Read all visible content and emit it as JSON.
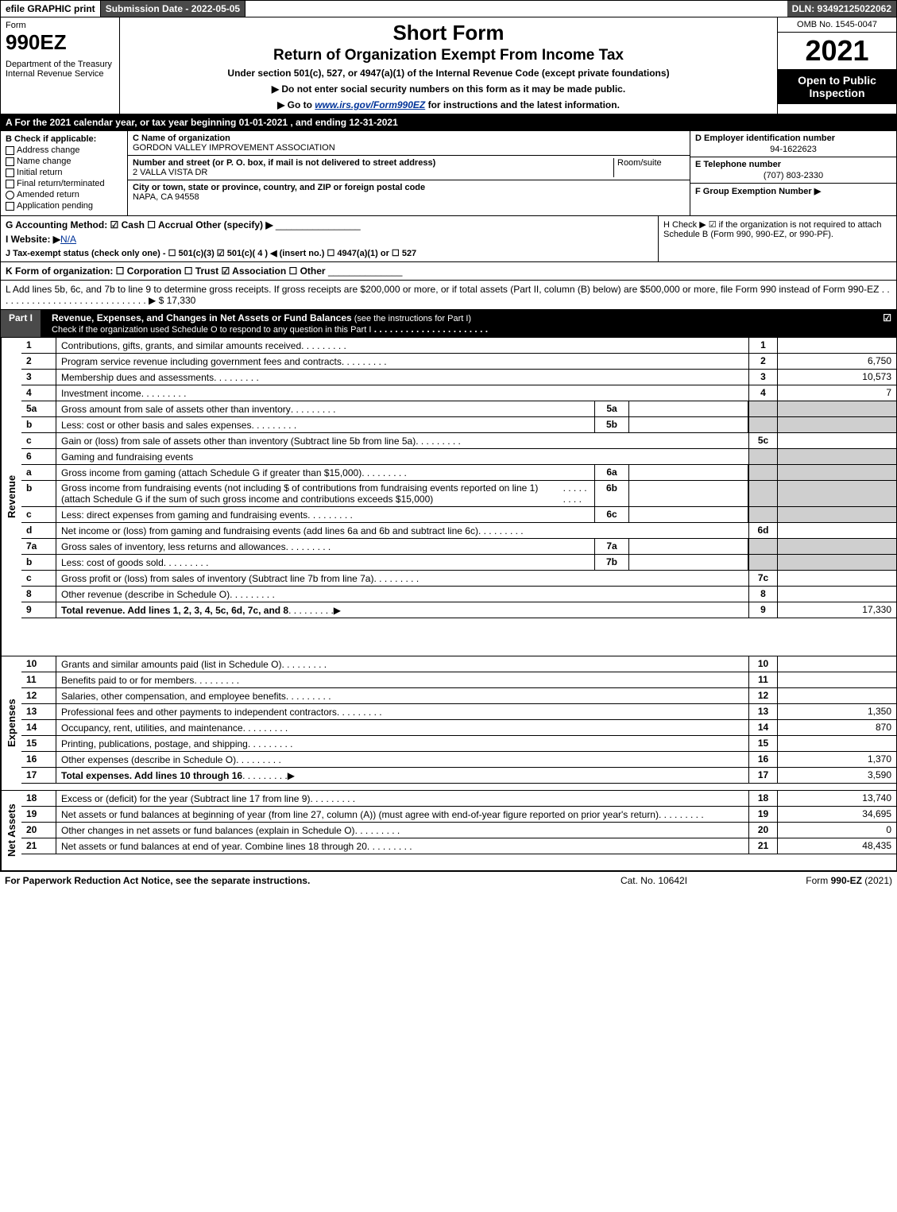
{
  "topbar": {
    "efile": "efile GRAPHIC print",
    "subdate": "Submission Date - 2022-05-05",
    "dln": "DLN: 93492125022062"
  },
  "header": {
    "form_label": "Form",
    "form_code": "990EZ",
    "dept": "Department of the Treasury\nInternal Revenue Service",
    "title": "Short Form",
    "subtitle": "Return of Organization Exempt From Income Tax",
    "under": "Under section 501(c), 527, or 4947(a)(1) of the Internal Revenue Code (except private foundations)",
    "note1": "▶ Do not enter social security numbers on this form as it may be made public.",
    "note2_pre": "▶ Go to ",
    "note2_link": "www.irs.gov/Form990EZ",
    "note2_post": " for instructions and the latest information.",
    "omb": "OMB No. 1545-0047",
    "year": "2021",
    "open": "Open to Public Inspection"
  },
  "line_a": "A  For the 2021 calendar year, or tax year beginning 01-01-2021 , and ending 12-31-2021",
  "section_b": {
    "head": "B  Check if applicable:",
    "opts": [
      "Address change",
      "Name change",
      "Initial return",
      "Final return/terminated",
      "Amended return",
      "Application pending"
    ]
  },
  "section_c": {
    "name_lbl": "C Name of organization",
    "name_val": "GORDON VALLEY IMPROVEMENT ASSOCIATION",
    "addr_lbl": "Number and street (or P. O. box, if mail is not delivered to street address)",
    "addr_val": "2 VALLA VISTA DR",
    "room_lbl": "Room/suite",
    "city_lbl": "City or town, state or province, country, and ZIP or foreign postal code",
    "city_val": "NAPA, CA  94558"
  },
  "section_def": {
    "d_lbl": "D Employer identification number",
    "d_val": "94-1622623",
    "e_lbl": "E Telephone number",
    "e_val": "(707) 803-2330",
    "f_lbl": "F Group Exemption Number  ▶"
  },
  "section_g": {
    "g": "G Accounting Method:  ☑ Cash  ☐ Accrual  Other (specify) ▶",
    "i_pre": "I Website: ▶",
    "i_val": "N/A",
    "j": "J Tax-exempt status (check only one) - ☐ 501(c)(3) ☑ 501(c)( 4 ) ◀ (insert no.) ☐ 4947(a)(1) or ☐ 527",
    "h": "H  Check ▶ ☑ if the organization is not required to attach Schedule B (Form 990, 990-EZ, or 990-PF)."
  },
  "line_k": "K Form of organization:  ☐ Corporation  ☐ Trust  ☑ Association  ☐ Other",
  "line_l": "L Add lines 5b, 6c, and 7b to line 9 to determine gross receipts. If gross receipts are $200,000 or more, or if total assets (Part II, column (B) below) are $500,000 or more, file Form 990 instead of Form 990-EZ . . . . . . . . . . . . . . . . . . . . . . . . . . . . . ▶ $ 17,330",
  "part1": {
    "tab": "Part I",
    "title": "Revenue, Expenses, and Changes in Net Assets or Fund Balances",
    "title_note": " (see the instructions for Part I)",
    "subtitle": "Check if the organization used Schedule O to respond to any question in this Part I"
  },
  "sidelabels": {
    "revenue": "Revenue",
    "expenses": "Expenses",
    "netassets": "Net Assets"
  },
  "rows": [
    {
      "n": "1",
      "d": "Contributions, gifts, grants, and similar amounts received",
      "nc": "1",
      "v": ""
    },
    {
      "n": "2",
      "d": "Program service revenue including government fees and contracts",
      "nc": "2",
      "v": "6,750"
    },
    {
      "n": "3",
      "d": "Membership dues and assessments",
      "nc": "3",
      "v": "10,573"
    },
    {
      "n": "4",
      "d": "Investment income",
      "nc": "4",
      "v": "7"
    },
    {
      "n": "5a",
      "d": "Gross amount from sale of assets other than inventory",
      "sub": "5a"
    },
    {
      "n": "b",
      "d": "Less: cost or other basis and sales expenses",
      "sub": "5b"
    },
    {
      "n": "c",
      "d": "Gain or (loss) from sale of assets other than inventory (Subtract line 5b from line 5a)",
      "nc": "5c",
      "v": ""
    },
    {
      "n": "6",
      "d": "Gaming and fundraising events"
    },
    {
      "n": "a",
      "d": "Gross income from gaming (attach Schedule G if greater than $15,000)",
      "sub": "6a"
    },
    {
      "n": "b",
      "d": "Gross income from fundraising events (not including $           of contributions from fundraising events reported on line 1) (attach Schedule G if the sum of such gross income and contributions exceeds $15,000)",
      "sub": "6b"
    },
    {
      "n": "c",
      "d": "Less: direct expenses from gaming and fundraising events",
      "sub": "6c"
    },
    {
      "n": "d",
      "d": "Net income or (loss) from gaming and fundraising events (add lines 6a and 6b and subtract line 6c)",
      "nc": "6d",
      "v": ""
    },
    {
      "n": "7a",
      "d": "Gross sales of inventory, less returns and allowances",
      "sub": "7a"
    },
    {
      "n": "b",
      "d": "Less: cost of goods sold",
      "sub": "7b"
    },
    {
      "n": "c",
      "d": "Gross profit or (loss) from sales of inventory (Subtract line 7b from line 7a)",
      "nc": "7c",
      "v": ""
    },
    {
      "n": "8",
      "d": "Other revenue (describe in Schedule O)",
      "nc": "8",
      "v": ""
    },
    {
      "n": "9",
      "d": "Total revenue. Add lines 1, 2, 3, 4, 5c, 6d, 7c, and 8",
      "nc": "9",
      "v": "17,330",
      "bold": true,
      "arrow": true
    }
  ],
  "rows_exp": [
    {
      "n": "10",
      "d": "Grants and similar amounts paid (list in Schedule O)",
      "nc": "10",
      "v": ""
    },
    {
      "n": "11",
      "d": "Benefits paid to or for members",
      "nc": "11",
      "v": ""
    },
    {
      "n": "12",
      "d": "Salaries, other compensation, and employee benefits",
      "nc": "12",
      "v": ""
    },
    {
      "n": "13",
      "d": "Professional fees and other payments to independent contractors",
      "nc": "13",
      "v": "1,350"
    },
    {
      "n": "14",
      "d": "Occupancy, rent, utilities, and maintenance",
      "nc": "14",
      "v": "870"
    },
    {
      "n": "15",
      "d": "Printing, publications, postage, and shipping",
      "nc": "15",
      "v": ""
    },
    {
      "n": "16",
      "d": "Other expenses (describe in Schedule O)",
      "nc": "16",
      "v": "1,370"
    },
    {
      "n": "17",
      "d": "Total expenses. Add lines 10 through 16",
      "nc": "17",
      "v": "3,590",
      "bold": true,
      "arrow": true
    }
  ],
  "rows_na": [
    {
      "n": "18",
      "d": "Excess or (deficit) for the year (Subtract line 17 from line 9)",
      "nc": "18",
      "v": "13,740"
    },
    {
      "n": "19",
      "d": "Net assets or fund balances at beginning of year (from line 27, column (A)) (must agree with end-of-year figure reported on prior year's return)",
      "nc": "19",
      "v": "34,695"
    },
    {
      "n": "20",
      "d": "Other changes in net assets or fund balances (explain in Schedule O)",
      "nc": "20",
      "v": "0"
    },
    {
      "n": "21",
      "d": "Net assets or fund balances at end of year. Combine lines 18 through 20",
      "nc": "21",
      "v": "48,435"
    }
  ],
  "footer": {
    "left": "For Paperwork Reduction Act Notice, see the separate instructions.",
    "center": "Cat. No. 10642I",
    "right_pre": "Form ",
    "right_form": "990-EZ",
    "right_post": " (2021)"
  },
  "colors": {
    "dark_bg": "#4a4a4a",
    "black": "#000000",
    "grey": "#cfcfcf",
    "link": "#003399"
  }
}
